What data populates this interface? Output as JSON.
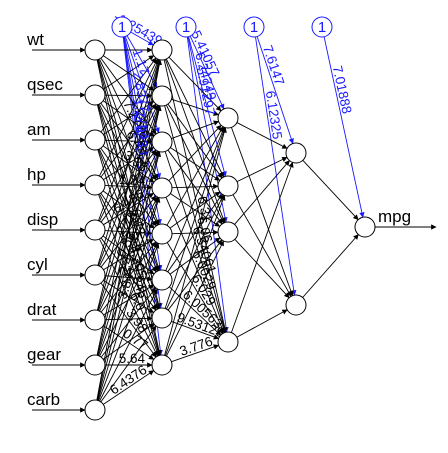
{
  "inputs": [
    "wt",
    "qsec",
    "am",
    "hp",
    "disp",
    "cyl",
    "drat",
    "gear",
    "carb"
  ],
  "output": "mpg",
  "bias_label": "1",
  "colors": {
    "weights": "#000000",
    "bias": "#1a1aff",
    "background": "#ffffff"
  },
  "weight_labels": [
    "7.27763",
    "6.43",
    "6.43",
    "5.6",
    "3.38",
    "4.305",
    "1.24",
    "2.845",
    "6.436",
    "6.0",
    "2.75",
    "3.98",
    "0.56",
    "0.77",
    "2.4",
    "5.64",
    "3.84",
    "6.4376",
    "6.31",
    "6.06",
    "6.54061",
    "6.0029",
    "6.029",
    "6.00563",
    "9.53129",
    "3.776"
  ],
  "bias_weight_labels": [
    "-1.25439",
    "1.17",
    "2.8377",
    "1.2754",
    "2.8233",
    "5.41057",
    "6.24749",
    "5.91297",
    "7.6147",
    "6.12325",
    "7.01888"
  ]
}
